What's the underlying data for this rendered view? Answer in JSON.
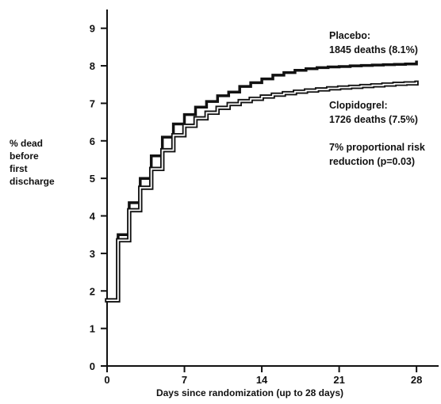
{
  "chart_data": {
    "type": "line",
    "xlabel": "Days since randomization (up to 28 days)",
    "ylabel_lines": [
      "% dead",
      "before",
      "first",
      "discharge"
    ],
    "xlim": [
      0,
      30
    ],
    "ylim": [
      0,
      9.5
    ],
    "x_ticks": [
      0,
      7,
      14,
      21,
      28
    ],
    "y_ticks": [
      0,
      1,
      2,
      3,
      4,
      5,
      6,
      7,
      8,
      9
    ],
    "grid": false,
    "series": [
      {
        "name": "Placebo",
        "style": "thick",
        "color": "#111111",
        "x": [
          0,
          1,
          2,
          3,
          4,
          5,
          6,
          7,
          8,
          9,
          10,
          11,
          12,
          13,
          14,
          15,
          16,
          17,
          18,
          19,
          20,
          21,
          22,
          23,
          24,
          25,
          26,
          27,
          28
        ],
        "y": [
          1.75,
          3.5,
          4.35,
          5.0,
          5.6,
          6.1,
          6.45,
          6.7,
          6.9,
          7.05,
          7.2,
          7.3,
          7.45,
          7.55,
          7.65,
          7.75,
          7.82,
          7.88,
          7.92,
          7.95,
          7.97,
          7.98,
          8.0,
          8.01,
          8.02,
          8.03,
          8.04,
          8.05,
          8.1
        ]
      },
      {
        "name": "Clopidogrel",
        "style": "double",
        "color": "#111111",
        "x": [
          0,
          1,
          2,
          3,
          4,
          5,
          6,
          7,
          8,
          9,
          10,
          11,
          12,
          13,
          14,
          15,
          16,
          17,
          18,
          19,
          20,
          21,
          22,
          23,
          24,
          25,
          26,
          27,
          28
        ],
        "y": [
          1.75,
          3.35,
          4.15,
          4.75,
          5.25,
          5.75,
          6.15,
          6.4,
          6.6,
          6.75,
          6.88,
          6.98,
          7.06,
          7.12,
          7.18,
          7.23,
          7.27,
          7.31,
          7.34,
          7.37,
          7.4,
          7.42,
          7.44,
          7.46,
          7.48,
          7.5,
          7.52,
          7.53,
          7.55
        ]
      }
    ],
    "annotations": [
      {
        "lines": [
          "Placebo:",
          "1845 deaths (8.1%)"
        ]
      },
      {
        "lines": [
          "Clopidogrel:",
          "1726 deaths (7.5%)"
        ]
      },
      {
        "lines": [
          "7% proportional risk",
          "reduction (p=0.03)"
        ]
      }
    ]
  }
}
